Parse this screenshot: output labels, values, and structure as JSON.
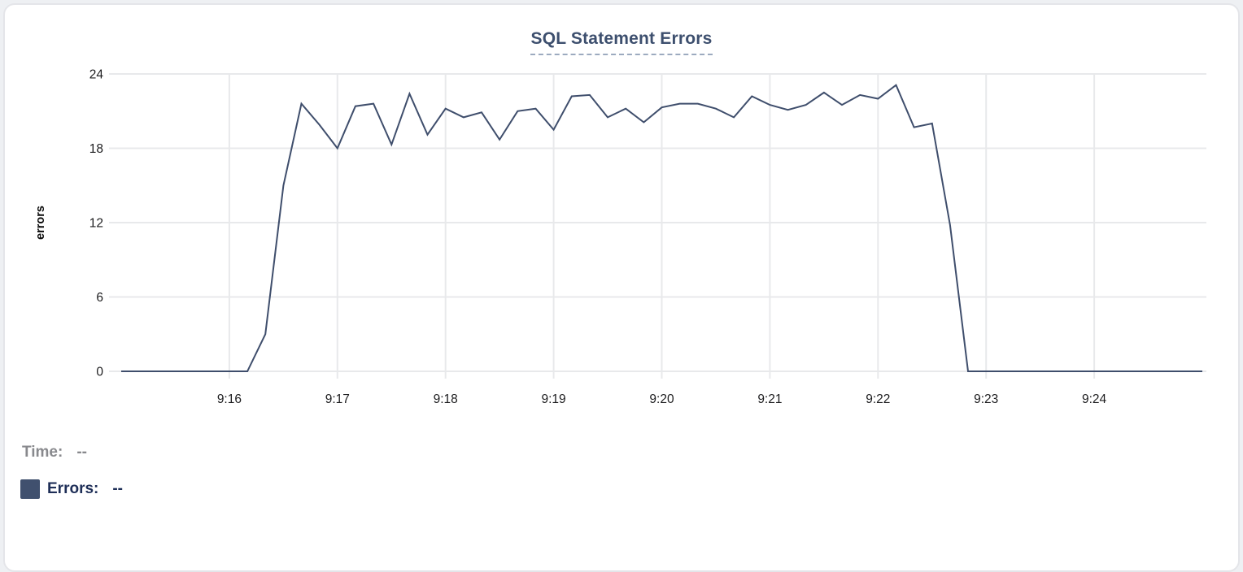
{
  "card": {
    "title": "SQL Statement Errors"
  },
  "legend": {
    "time_label": "Time:",
    "time_value": "--",
    "errors_label": "Errors:",
    "errors_value": "--"
  },
  "colors": {
    "line": "#3f4e6c",
    "swatch": "#40506e",
    "gridline": "#e8e9eb",
    "tick_text": "#1c1c1e",
    "axis_label": "#0a0a0a",
    "title": "#3d4f6e",
    "title_underline": "#9caabf",
    "card_border": "#e4e5e9"
  },
  "chart_data": {
    "type": "line",
    "title": "SQL Statement Errors",
    "xlabel": "",
    "ylabel": "errors",
    "ylim": [
      0,
      24
    ],
    "y_ticks": [
      0,
      6,
      12,
      18,
      24
    ],
    "x_ticks": [
      "9:16",
      "9:17",
      "9:18",
      "9:19",
      "9:20",
      "9:21",
      "9:22",
      "9:23",
      "9:24"
    ],
    "grid": true,
    "legend_position": "bottom-left",
    "series_name": "Errors",
    "x": [
      "9:15:00",
      "9:15:10",
      "9:15:20",
      "9:15:30",
      "9:15:40",
      "9:15:50",
      "9:16:00",
      "9:16:10",
      "9:16:20",
      "9:16:30",
      "9:16:40",
      "9:16:50",
      "9:17:00",
      "9:17:10",
      "9:17:20",
      "9:17:30",
      "9:17:40",
      "9:17:50",
      "9:18:00",
      "9:18:10",
      "9:18:20",
      "9:18:30",
      "9:18:40",
      "9:18:50",
      "9:19:00",
      "9:19:10",
      "9:19:20",
      "9:19:30",
      "9:19:40",
      "9:19:50",
      "9:20:00",
      "9:20:10",
      "9:20:20",
      "9:20:30",
      "9:20:40",
      "9:20:50",
      "9:21:00",
      "9:21:10",
      "9:21:20",
      "9:21:30",
      "9:21:40",
      "9:21:50",
      "9:22:00",
      "9:22:10",
      "9:22:20",
      "9:22:30",
      "9:22:40",
      "9:22:50",
      "9:23:00",
      "9:23:10",
      "9:23:20",
      "9:23:30",
      "9:23:40",
      "9:23:50",
      "9:24:00",
      "9:24:10",
      "9:24:20",
      "9:24:30",
      "9:24:40",
      "9:24:50",
      "9:25:00"
    ],
    "values": [
      0,
      0,
      0,
      0,
      0,
      0,
      0,
      0,
      3,
      15,
      21.6,
      19.9,
      18,
      21.4,
      21.6,
      18.3,
      22.4,
      19.1,
      21.2,
      20.5,
      20.9,
      18.7,
      21,
      21.2,
      19.5,
      22.2,
      22.3,
      20.5,
      21.2,
      20.1,
      21.3,
      21.6,
      21.6,
      21.2,
      20.5,
      22.2,
      21.5,
      21.1,
      21.5,
      22.5,
      21.5,
      22.3,
      22,
      23.1,
      19.7,
      20,
      11.8,
      0,
      0,
      0,
      0,
      0,
      0,
      0,
      0,
      0,
      0,
      0,
      0,
      0,
      0
    ]
  }
}
